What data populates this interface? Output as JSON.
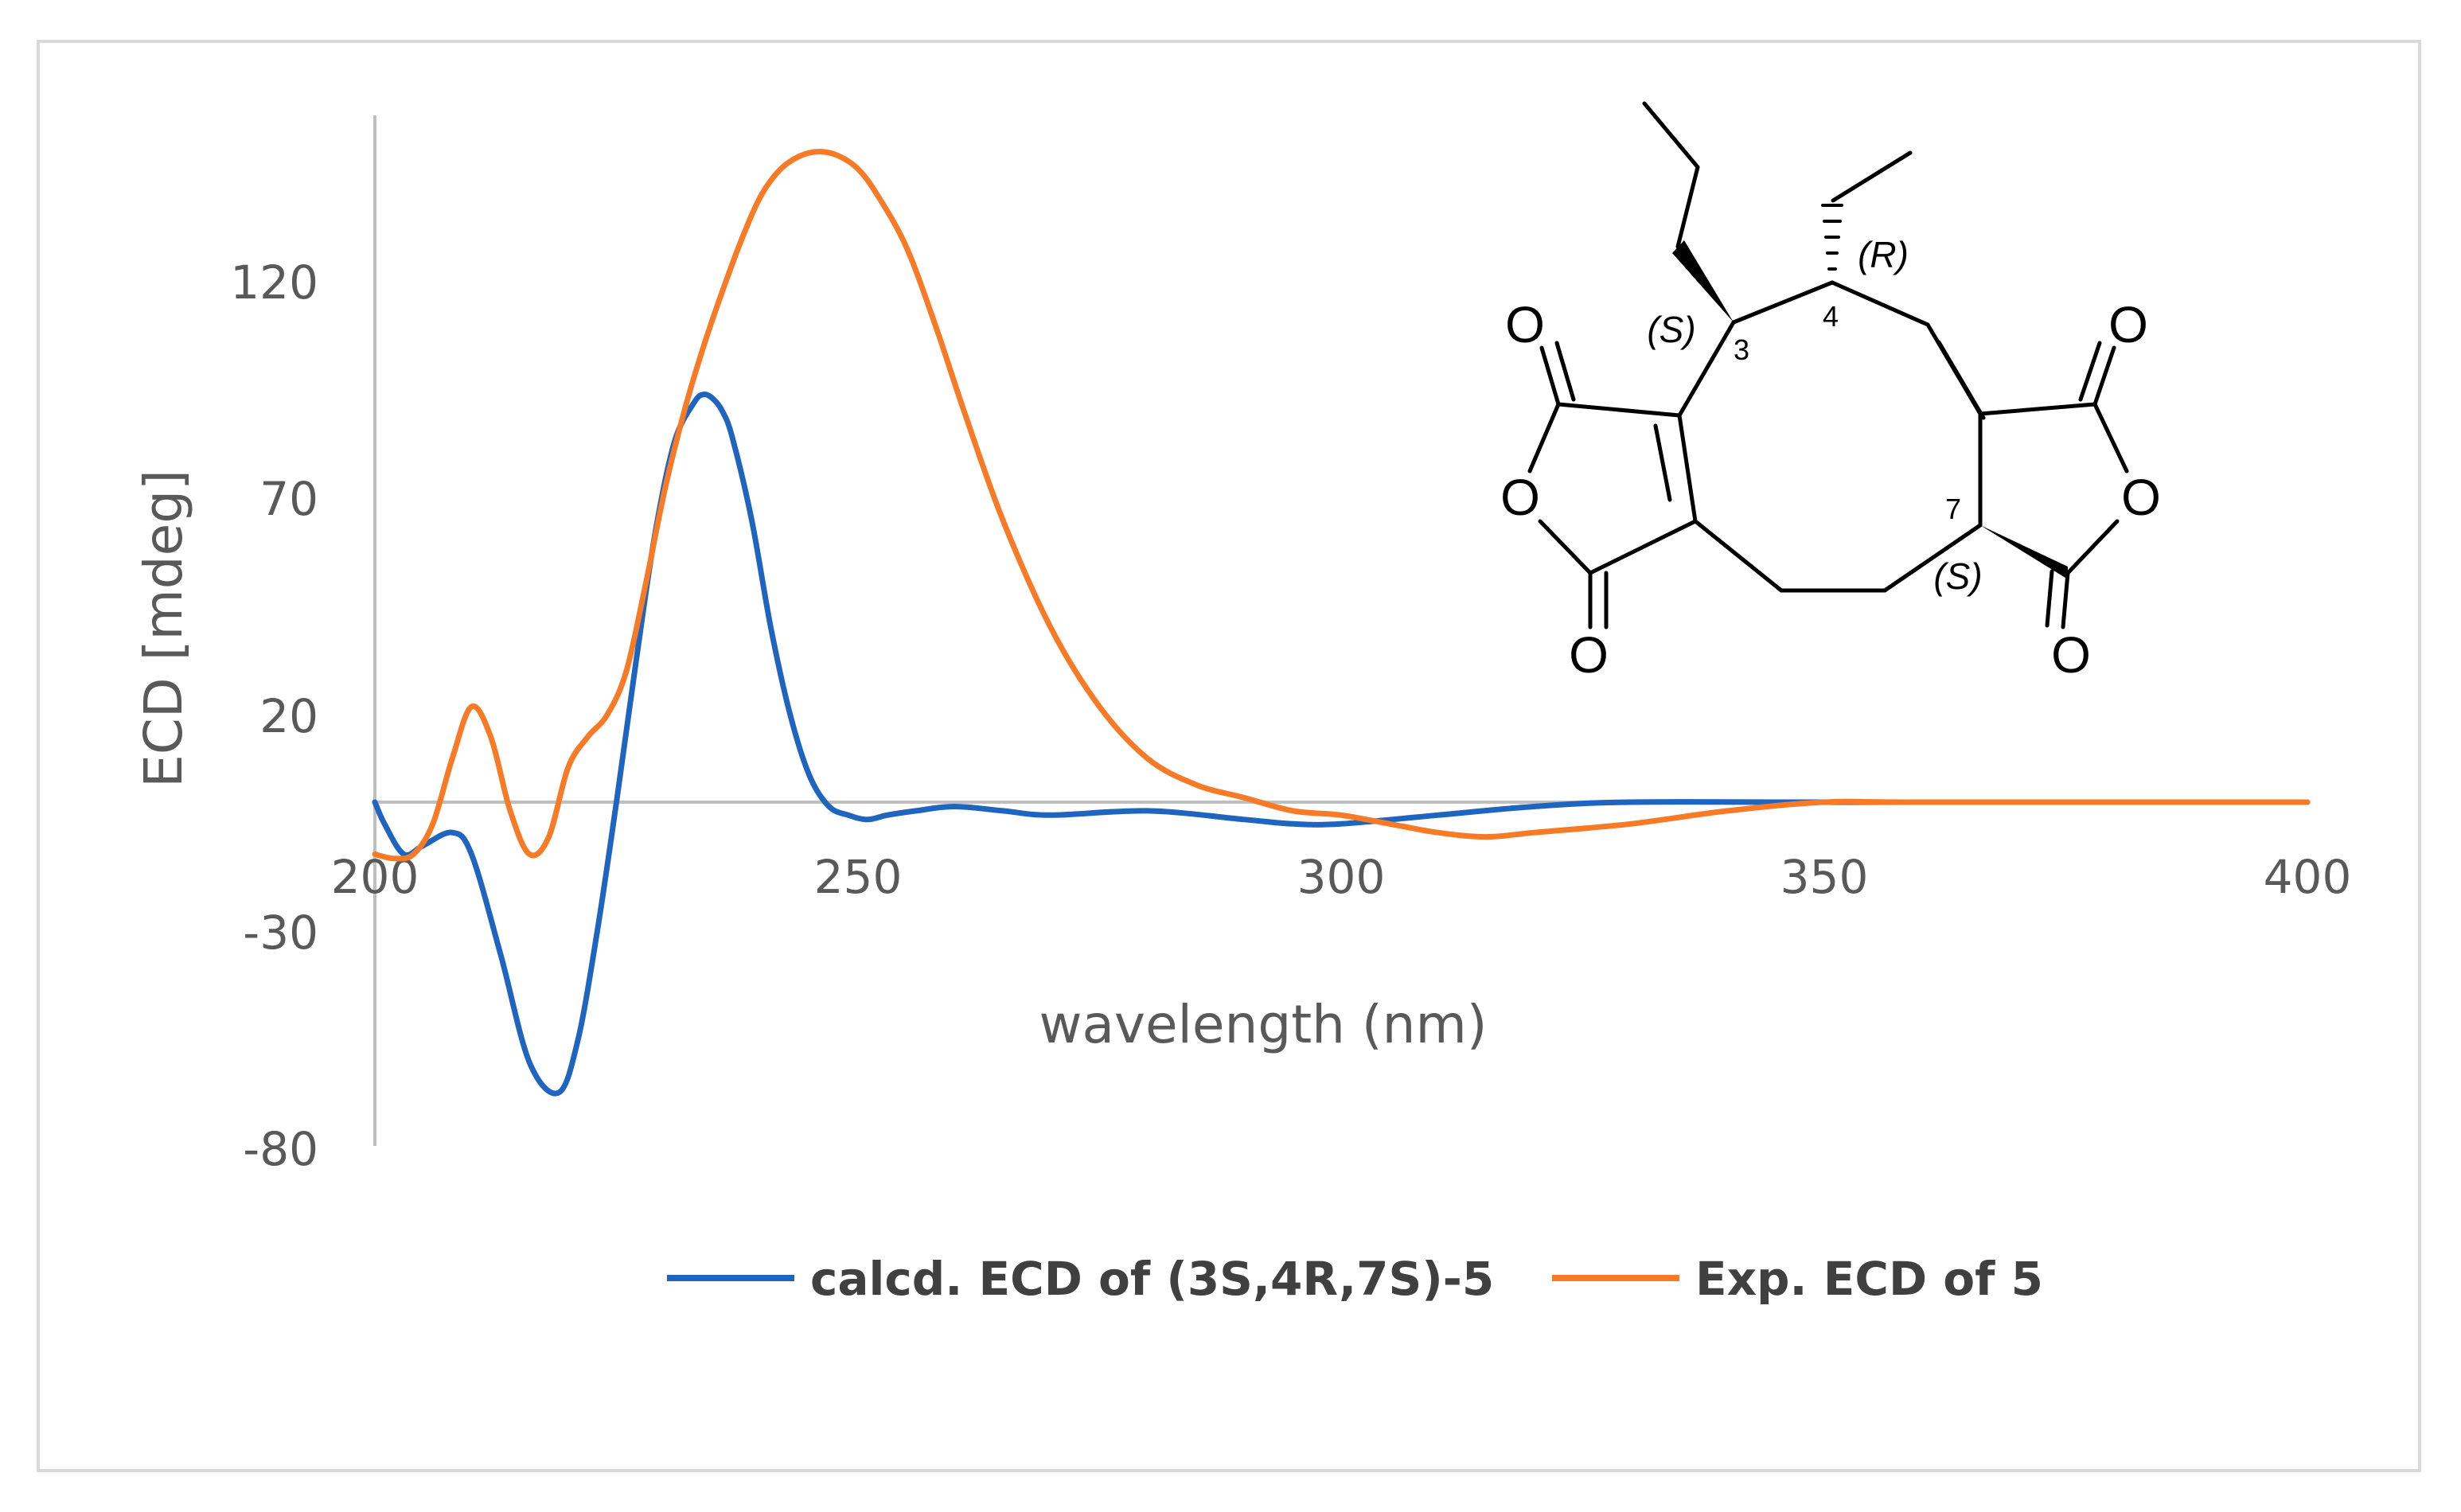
{
  "chart_data": {
    "type": "line",
    "xlabel": "wavelength (nm)",
    "ylabel": "ECD [mdeg]",
    "xlim": [
      200,
      400
    ],
    "ylim": [
      -80,
      160
    ],
    "xticks": [
      "200",
      "250",
      "300",
      "350",
      "400"
    ],
    "yticks": [
      "120",
      "70",
      "20",
      "-30",
      "-80"
    ],
    "grid": false,
    "legend_position": "bottom",
    "series": [
      {
        "name": "calcd. ECD of (3S,4R,7S)-5",
        "color": "#1f65c0",
        "x": [
          200,
          201,
          203,
          205,
          208,
          210,
          213,
          216,
          219,
          221,
          223,
          225,
          227,
          229,
          231,
          233,
          234,
          235,
          236,
          237,
          239,
          241,
          243,
          245,
          247,
          249,
          251,
          253,
          256,
          260,
          265,
          270,
          280,
          290,
          295,
          300,
          310,
          320,
          330,
          350,
          400
        ],
        "y": [
          0,
          -5,
          -12,
          -10,
          -7,
          -12,
          -35,
          -60,
          -67,
          -55,
          -30,
          0,
          32,
          62,
          83,
          92,
          94,
          93,
          90,
          84,
          65,
          40,
          20,
          6,
          -1,
          -3,
          -4,
          -3,
          -2,
          -1,
          -2,
          -3,
          -2,
          -4,
          -5,
          -5,
          -3,
          -1,
          0,
          0,
          0
        ]
      },
      {
        "name": "Exp. ECD of 5",
        "color": "#f77b27",
        "x": [
          200,
          202,
          204,
          206,
          208,
          210,
          212,
          214,
          216,
          218,
          220,
          222,
          224,
          226,
          228,
          230,
          232,
          234,
          236,
          238,
          240,
          242,
          244,
          246,
          248,
          250,
          252,
          255,
          258,
          261,
          265,
          270,
          275,
          280,
          285,
          290,
          295,
          300,
          305,
          310,
          315,
          320,
          330,
          340,
          350,
          360,
          400
        ],
        "y": [
          -12,
          -13,
          -12,
          -5,
          10,
          22,
          15,
          -2,
          -12,
          -8,
          8,
          15,
          20,
          30,
          50,
          72,
          90,
          105,
          118,
          130,
          140,
          146,
          149,
          150,
          149,
          146,
          140,
          128,
          110,
          90,
          65,
          40,
          22,
          10,
          4,
          1,
          -2,
          -3,
          -5,
          -7,
          -8,
          -7,
          -5,
          -2,
          0,
          0,
          0
        ]
      }
    ]
  },
  "structure": {
    "atoms": {
      "o_top_left": "O",
      "o_ring_left": "O",
      "o_bottom_left": "O",
      "o_top_right": "O",
      "o_ring_right": "O",
      "o_bottom_right": "O"
    },
    "stereo_labels": {
      "c3": "(S)",
      "c4": "(R)",
      "c7": "(S)"
    },
    "locants": {
      "c3": "3",
      "c4": "4",
      "c7": "7"
    }
  }
}
